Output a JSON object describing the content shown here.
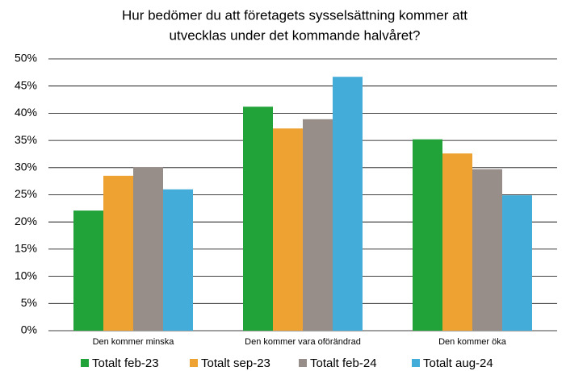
{
  "chart_data": {
    "type": "bar",
    "title": [
      "Hur bedömer du att företagets sysselsättning kommer att",
      "utvecklas under det kommande halvåret?"
    ],
    "categories": [
      "Den kommer minska",
      "Den kommer vara oförändrad",
      "Den kommer öka"
    ],
    "series": [
      {
        "name": "Totalt feb-23",
        "color": "#22a33a",
        "values": [
          22.1,
          41.2,
          35.2
        ]
      },
      {
        "name": "Totalt sep-23",
        "color": "#eea232",
        "values": [
          28.5,
          37.2,
          32.6
        ]
      },
      {
        "name": "Totalt feb-24",
        "color": "#978d89",
        "values": [
          30.1,
          38.9,
          29.7
        ]
      },
      {
        "name": "Totalt aug-24",
        "color": "#44acd8",
        "values": [
          26.0,
          46.7,
          24.9
        ]
      }
    ],
    "ylim": [
      0,
      50
    ],
    "yticks": [
      {
        "value": 0,
        "label": "0%"
      },
      {
        "value": 5,
        "label": "5%"
      },
      {
        "value": 10,
        "label": "10%"
      },
      {
        "value": 15,
        "label": "15%"
      },
      {
        "value": 20,
        "label": "20%"
      },
      {
        "value": 25,
        "label": "25%"
      },
      {
        "value": 30,
        "label": "30%"
      },
      {
        "value": 35,
        "label": "35%"
      },
      {
        "value": 40,
        "label": "40%"
      },
      {
        "value": 45,
        "label": "45%"
      },
      {
        "value": 50,
        "label": "50%"
      }
    ],
    "grid": true,
    "legend": "bottom"
  }
}
